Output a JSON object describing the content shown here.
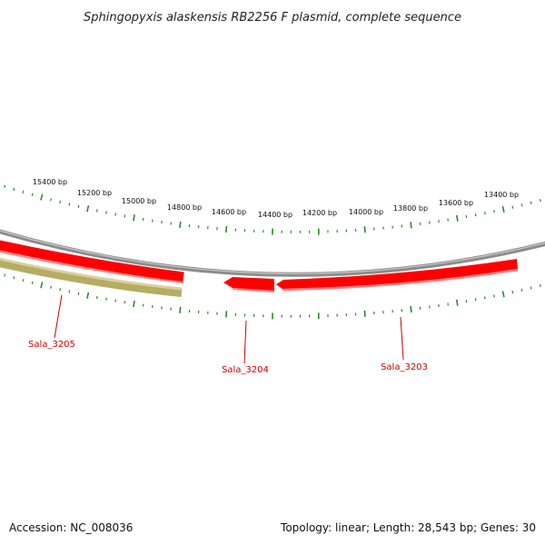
{
  "title": "Sphingopyxis alaskensis RB2256 F plasmid, complete sequence",
  "footer": {
    "accession": "Accession: NC_008036",
    "summary": "Topology: linear; Length: 28,543 bp; Genes: 30"
  },
  "colors": {
    "backbone": "#8c8c8c",
    "ticks": "#2a8a2a",
    "gene_forward": "#ff0000",
    "gene_other": "#c8bf7a",
    "label": "#cc0000"
  },
  "scale_labels": [
    "15400 bp",
    "15200 bp",
    "15000 bp",
    "14800 bp",
    "14600 bp",
    "14400 bp",
    "14200 bp",
    "14000 bp",
    "13800 bp",
    "13600 bp",
    "13400 bp"
  ],
  "genes": [
    {
      "name": "Sala_3205",
      "kind": "other"
    },
    {
      "name": "Sala_3204",
      "kind": "forward"
    },
    {
      "name": "Sala_3203",
      "kind": "forward"
    }
  ]
}
